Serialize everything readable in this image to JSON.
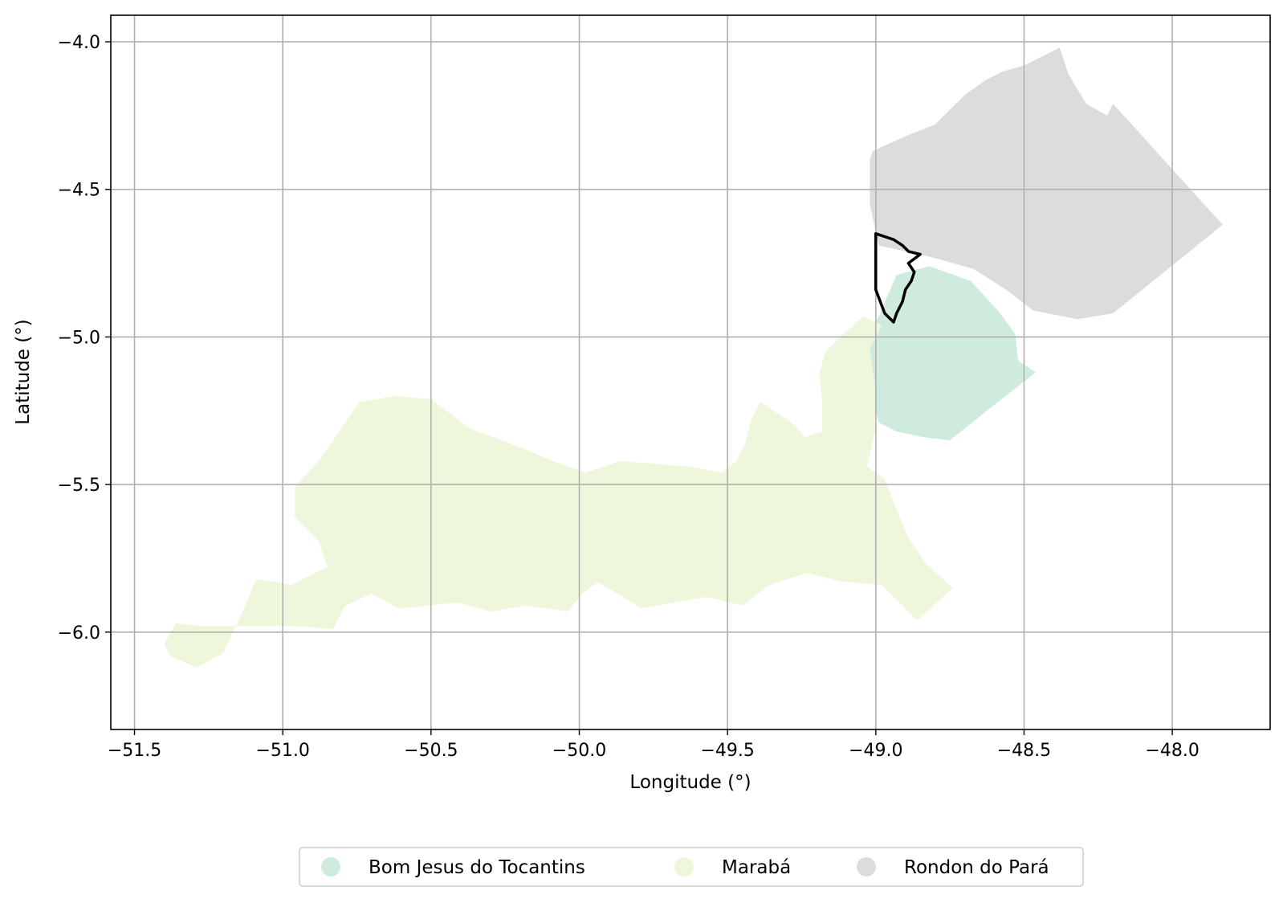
{
  "chart_data": {
    "type": "map",
    "xlabel": "Longitude (°)",
    "ylabel": "Latitude (°)",
    "xlim": [
      -51.58,
      -47.67
    ],
    "ylim": [
      -6.33,
      -3.91
    ],
    "grid": true,
    "legend_position": "bottom-center",
    "x_ticks": [
      {
        "value": -51.5,
        "label": "−51.5"
      },
      {
        "value": -51.0,
        "label": "−51.0"
      },
      {
        "value": -50.5,
        "label": "−50.5"
      },
      {
        "value": -50.0,
        "label": "−50.0"
      },
      {
        "value": -49.5,
        "label": "−49.5"
      },
      {
        "value": -49.0,
        "label": "−49.0"
      },
      {
        "value": -48.5,
        "label": "−48.5"
      },
      {
        "value": -48.0,
        "label": "−48.0"
      }
    ],
    "y_ticks": [
      {
        "value": -4.0,
        "label": "−4.0"
      },
      {
        "value": -4.5,
        "label": "−4.5"
      },
      {
        "value": -5.0,
        "label": "−5.0"
      },
      {
        "value": -5.5,
        "label": "−5.5"
      },
      {
        "value": -6.0,
        "label": "−6.0"
      }
    ],
    "regions": [
      {
        "name": "Bom Jesus do Tocantins",
        "color": "#cfebde",
        "polygon": [
          [
            -48.93,
            -4.79
          ],
          [
            -48.82,
            -4.76
          ],
          [
            -48.68,
            -4.81
          ],
          [
            -48.58,
            -4.92
          ],
          [
            -48.53,
            -4.99
          ],
          [
            -48.52,
            -5.08
          ],
          [
            -48.46,
            -5.12
          ],
          [
            -48.6,
            -5.23
          ],
          [
            -48.75,
            -5.35
          ],
          [
            -48.84,
            -5.34
          ],
          [
            -48.93,
            -5.32
          ],
          [
            -48.99,
            -5.29
          ],
          [
            -49.01,
            -5.22
          ],
          [
            -49.03,
            -5.14
          ],
          [
            -49.02,
            -5.05
          ],
          [
            -49.03,
            -4.99
          ],
          [
            -48.99,
            -4.93
          ],
          [
            -48.96,
            -4.86
          ]
        ]
      },
      {
        "name": "Marabá",
        "color": "#eef7dc",
        "polygon": [
          [
            -51.4,
            -6.04
          ],
          [
            -51.36,
            -5.97
          ],
          [
            -51.27,
            -5.98
          ],
          [
            -51.11,
            -5.98
          ],
          [
            -50.95,
            -5.98
          ],
          [
            -50.83,
            -5.99
          ],
          [
            -50.79,
            -5.91
          ],
          [
            -50.7,
            -5.87
          ],
          [
            -50.61,
            -5.92
          ],
          [
            -50.51,
            -5.91
          ],
          [
            -50.41,
            -5.9
          ],
          [
            -50.3,
            -5.93
          ],
          [
            -50.18,
            -5.91
          ],
          [
            -50.04,
            -5.93
          ],
          [
            -49.99,
            -5.87
          ],
          [
            -49.94,
            -5.83
          ],
          [
            -49.87,
            -5.87
          ],
          [
            -49.79,
            -5.92
          ],
          [
            -49.68,
            -5.9
          ],
          [
            -49.57,
            -5.88
          ],
          [
            -49.45,
            -5.91
          ],
          [
            -49.36,
            -5.84
          ],
          [
            -49.23,
            -5.8
          ],
          [
            -49.11,
            -5.83
          ],
          [
            -48.98,
            -5.84
          ],
          [
            -48.91,
            -5.91
          ],
          [
            -48.86,
            -5.96
          ],
          [
            -48.74,
            -5.85
          ],
          [
            -48.83,
            -5.77
          ],
          [
            -48.89,
            -5.68
          ],
          [
            -48.94,
            -5.56
          ],
          [
            -48.97,
            -5.48
          ],
          [
            -49.03,
            -5.44
          ],
          [
            -49.0,
            -5.31
          ],
          [
            -49.0,
            -5.18
          ],
          [
            -49.02,
            -5.04
          ],
          [
            -48.98,
            -4.96
          ],
          [
            -49.04,
            -4.93
          ],
          [
            -49.12,
            -5.0
          ],
          [
            -49.17,
            -5.05
          ],
          [
            -49.19,
            -5.12
          ],
          [
            -49.18,
            -5.23
          ],
          [
            -49.18,
            -5.32
          ],
          [
            -49.24,
            -5.34
          ],
          [
            -49.27,
            -5.3
          ],
          [
            -49.39,
            -5.22
          ],
          [
            -49.42,
            -5.28
          ],
          [
            -49.44,
            -5.36
          ],
          [
            -49.47,
            -5.42
          ],
          [
            -49.52,
            -5.46
          ],
          [
            -49.62,
            -5.44
          ],
          [
            -49.74,
            -5.43
          ],
          [
            -49.86,
            -5.42
          ],
          [
            -49.98,
            -5.46
          ],
          [
            -50.09,
            -5.42
          ],
          [
            -50.21,
            -5.37
          ],
          [
            -50.37,
            -5.31
          ],
          [
            -50.5,
            -5.21
          ],
          [
            -50.62,
            -5.2
          ],
          [
            -50.74,
            -5.22
          ],
          [
            -50.79,
            -5.29
          ],
          [
            -50.87,
            -5.41
          ],
          [
            -50.96,
            -5.51
          ],
          [
            -50.96,
            -5.61
          ],
          [
            -50.88,
            -5.69
          ],
          [
            -50.85,
            -5.78
          ],
          [
            -50.97,
            -5.84
          ],
          [
            -51.09,
            -5.82
          ],
          [
            -51.13,
            -5.92
          ],
          [
            -51.2,
            -6.07
          ],
          [
            -51.29,
            -6.12
          ],
          [
            -51.38,
            -6.08
          ]
        ]
      },
      {
        "name": "Rondon do Pará",
        "color": "#dcdcdc",
        "polygon": [
          [
            -49.01,
            -4.37
          ],
          [
            -48.9,
            -4.32
          ],
          [
            -48.8,
            -4.28
          ],
          [
            -48.7,
            -4.18
          ],
          [
            -48.63,
            -4.13
          ],
          [
            -48.57,
            -4.1
          ],
          [
            -48.5,
            -4.08
          ],
          [
            -48.42,
            -4.04
          ],
          [
            -48.38,
            -4.02
          ],
          [
            -48.35,
            -4.11
          ],
          [
            -48.29,
            -4.21
          ],
          [
            -48.22,
            -4.25
          ],
          [
            -48.2,
            -4.21
          ],
          [
            -47.83,
            -4.62
          ],
          [
            -48.2,
            -4.92
          ],
          [
            -48.32,
            -4.94
          ],
          [
            -48.47,
            -4.91
          ],
          [
            -48.56,
            -4.84
          ],
          [
            -48.67,
            -4.77
          ],
          [
            -48.81,
            -4.73
          ],
          [
            -48.99,
            -4.69
          ],
          [
            -49.02,
            -4.55
          ],
          [
            -49.02,
            -4.4
          ]
        ]
      }
    ],
    "highlight_outline": {
      "color": "#000000",
      "polygon": [
        [
          -49.0,
          -4.65
        ],
        [
          -48.97,
          -4.66
        ],
        [
          -48.94,
          -4.67
        ],
        [
          -48.91,
          -4.69
        ],
        [
          -48.89,
          -4.71
        ],
        [
          -48.85,
          -4.72
        ],
        [
          -48.89,
          -4.75
        ],
        [
          -48.87,
          -4.78
        ],
        [
          -48.88,
          -4.81
        ],
        [
          -48.9,
          -4.84
        ],
        [
          -48.91,
          -4.88
        ],
        [
          -48.93,
          -4.92
        ],
        [
          -48.94,
          -4.95
        ],
        [
          -48.97,
          -4.92
        ],
        [
          -49.0,
          -4.84
        ],
        [
          -49.0,
          -4.74
        ]
      ]
    }
  },
  "legend": {
    "items": [
      {
        "label": "Bom Jesus do Tocantins",
        "color": "#cfebde"
      },
      {
        "label": "Marabá",
        "color": "#eef7dc"
      },
      {
        "label": "Rondon do Pará",
        "color": "#dcdcdc"
      }
    ]
  }
}
